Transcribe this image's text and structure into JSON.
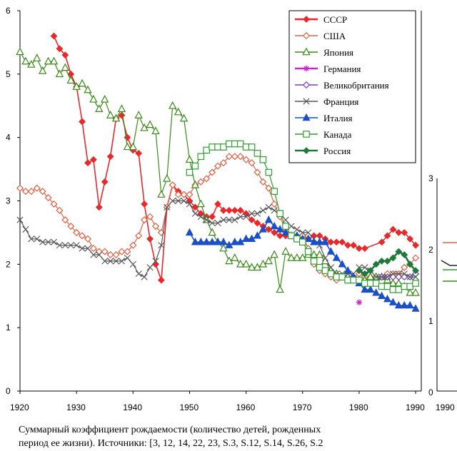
{
  "caption": {
    "line1": "Суммарный коэффициент рождаемости (количество детей, рожденных",
    "line2": "период ее жизни). Источники: [3, 12, 14, 22, 23, S.3, S.12, S.14, S.26, S.2"
  },
  "chart_data": {
    "type": "line",
    "title": "",
    "xlabel": "",
    "ylabel": "",
    "xlim": [
      1920,
      1991
    ],
    "ylim": [
      0,
      6
    ],
    "x_ticks": [
      1920,
      1930,
      1940,
      1950,
      1960,
      1970,
      1980,
      1990
    ],
    "y_ticks": [
      0,
      1,
      2,
      3,
      4,
      5,
      6
    ],
    "grid": false,
    "legend": "top-right",
    "series": [
      {
        "name": "СССР",
        "color": "#e8282a",
        "marker": "diamond-filled",
        "x": [
          1926,
          1927,
          1928,
          1929,
          1930,
          1931,
          1932,
          1933,
          1934,
          1935,
          1936,
          1937,
          1938,
          1939,
          1940,
          1941,
          1942,
          1943,
          1944,
          1945,
          1946,
          1947,
          1948,
          1949,
          1950,
          1951,
          1952,
          1953,
          1954,
          1955,
          1956,
          1957,
          1958,
          1959,
          1960,
          1961,
          1962,
          1963,
          1964,
          1965,
          1966,
          1967,
          1968,
          1969,
          1970,
          1971,
          1972,
          1973,
          1974,
          1975,
          1976,
          1977,
          1978,
          1979,
          1980,
          1981,
          1984,
          1985,
          1986,
          1987,
          1988,
          1989,
          1990
        ],
        "y": [
          5.6,
          5.4,
          5.3,
          5.0,
          4.8,
          4.25,
          3.6,
          3.65,
          2.9,
          3.3,
          3.7,
          4.3,
          4.35,
          4.0,
          3.8,
          3.75,
          2.95,
          2.4,
          2.0,
          1.75,
          2.9,
          3.25,
          3.15,
          3.1,
          3.0,
          2.9,
          2.8,
          2.75,
          2.75,
          2.95,
          2.85,
          2.85,
          2.85,
          2.85,
          2.8,
          2.7,
          2.65,
          2.6,
          2.55,
          2.5,
          2.45,
          2.45,
          2.45,
          2.4,
          2.45,
          2.4,
          2.45,
          2.45,
          2.4,
          2.35,
          2.35,
          2.35,
          2.3,
          2.3,
          2.25,
          2.25,
          2.35,
          2.45,
          2.55,
          2.5,
          2.5,
          2.4,
          2.3
        ]
      },
      {
        "name": "США",
        "color": "#e06040",
        "marker": "diamond-open",
        "x": [
          1920,
          1921,
          1922,
          1923,
          1924,
          1925,
          1926,
          1927,
          1928,
          1929,
          1930,
          1931,
          1932,
          1933,
          1934,
          1935,
          1936,
          1937,
          1938,
          1939,
          1940,
          1941,
          1942,
          1943,
          1944,
          1945,
          1946,
          1947,
          1948,
          1949,
          1950,
          1951,
          1952,
          1953,
          1954,
          1955,
          1956,
          1957,
          1958,
          1959,
          1960,
          1961,
          1962,
          1963,
          1964,
          1965,
          1966,
          1967,
          1968,
          1969,
          1970,
          1971,
          1972,
          1973,
          1974,
          1975,
          1976,
          1977,
          1978,
          1979,
          1980,
          1981,
          1982,
          1983,
          1984,
          1985,
          1986,
          1987,
          1988,
          1989,
          1990
        ],
        "y": [
          3.2,
          3.15,
          3.15,
          3.2,
          3.15,
          3.05,
          2.95,
          2.85,
          2.7,
          2.6,
          2.5,
          2.45,
          2.4,
          2.25,
          2.2,
          2.2,
          2.15,
          2.15,
          2.2,
          2.2,
          2.3,
          2.45,
          2.7,
          2.75,
          2.6,
          2.5,
          2.9,
          3.25,
          3.1,
          3.1,
          3.1,
          3.25,
          3.3,
          3.35,
          3.45,
          3.55,
          3.6,
          3.7,
          3.7,
          3.7,
          3.65,
          3.6,
          3.45,
          3.3,
          3.2,
          2.95,
          2.75,
          2.55,
          2.45,
          2.45,
          2.45,
          2.25,
          2.0,
          1.9,
          1.85,
          1.8,
          1.75,
          1.8,
          1.75,
          1.8,
          1.85,
          1.8,
          1.8,
          1.8,
          1.8,
          1.85,
          1.85,
          1.85,
          1.95,
          2.0,
          2.1
        ]
      },
      {
        "name": "Япония",
        "color": "#3a8a1a",
        "marker": "triangle-open",
        "x": [
          1920,
          1921,
          1922,
          1923,
          1924,
          1925,
          1926,
          1927,
          1928,
          1929,
          1930,
          1931,
          1932,
          1933,
          1934,
          1935,
          1936,
          1937,
          1938,
          1939,
          1940,
          1941,
          1942,
          1943,
          1944,
          1945,
          1946,
          1947,
          1948,
          1949,
          1950,
          1951,
          1952,
          1953,
          1954,
          1955,
          1956,
          1957,
          1958,
          1959,
          1960,
          1961,
          1962,
          1963,
          1964,
          1965,
          1966,
          1967,
          1968,
          1969,
          1970,
          1971,
          1972,
          1973,
          1974,
          1975,
          1976,
          1977,
          1978,
          1979,
          1980,
          1981,
          1982,
          1983,
          1984,
          1985,
          1986,
          1987,
          1988,
          1989,
          1990
        ],
        "y": [
          5.35,
          5.2,
          5.15,
          5.25,
          5.05,
          5.2,
          5.2,
          5.0,
          5.1,
          4.9,
          4.8,
          4.85,
          4.75,
          4.6,
          4.45,
          4.6,
          4.35,
          4.3,
          4.45,
          3.85,
          3.85,
          4.35,
          4.15,
          4.2,
          4.1,
          3.1,
          3.35,
          4.5,
          4.4,
          4.3,
          3.65,
          3.25,
          2.95,
          2.7,
          2.5,
          2.35,
          2.25,
          2.05,
          2.1,
          2.0,
          2.0,
          1.95,
          1.95,
          2.0,
          2.05,
          2.15,
          1.6,
          2.2,
          2.1,
          2.1,
          2.1,
          2.15,
          2.15,
          2.15,
          2.05,
          1.9,
          1.85,
          1.8,
          1.8,
          1.75,
          1.75,
          1.75,
          1.8,
          1.8,
          1.8,
          1.75,
          1.7,
          1.7,
          1.65,
          1.55,
          1.55
        ]
      },
      {
        "name": "Германия",
        "color": "#d020d0",
        "marker": "star",
        "x": [
          1980
        ],
        "y": [
          1.4
        ]
      },
      {
        "name": "Великобритания",
        "color": "#7a3cc4",
        "marker": "diamond-open",
        "x": [
          1984,
          1985,
          1986,
          1987,
          1988,
          1989,
          1990
        ],
        "y": [
          1.8,
          1.8,
          1.8,
          1.8,
          1.8,
          1.8,
          1.85
        ]
      },
      {
        "name": "Франция",
        "color": "#555555",
        "marker": "x",
        "x": [
          1920,
          1921,
          1922,
          1923,
          1924,
          1925,
          1926,
          1927,
          1928,
          1929,
          1930,
          1931,
          1932,
          1933,
          1934,
          1935,
          1936,
          1937,
          1938,
          1939,
          1940,
          1941,
          1942,
          1943,
          1944,
          1945,
          1946,
          1947,
          1948,
          1949,
          1950,
          1951,
          1952,
          1953,
          1954,
          1955,
          1956,
          1957,
          1958,
          1959,
          1960,
          1961,
          1962,
          1963,
          1964,
          1965,
          1966,
          1967,
          1968,
          1969,
          1970,
          1971,
          1972,
          1973,
          1974,
          1975,
          1976,
          1977,
          1978,
          1979,
          1980,
          1981,
          1982,
          1983,
          1984,
          1985,
          1986,
          1987,
          1988,
          1989,
          1990
        ],
        "y": [
          2.7,
          2.55,
          2.4,
          2.4,
          2.35,
          2.35,
          2.35,
          2.3,
          2.3,
          2.3,
          2.3,
          2.25,
          2.25,
          2.15,
          2.15,
          2.05,
          2.05,
          2.05,
          2.05,
          2.1,
          2.0,
          1.85,
          1.8,
          1.95,
          2.05,
          2.3,
          2.9,
          3.0,
          3.0,
          3.0,
          2.95,
          2.8,
          2.75,
          2.7,
          2.65,
          2.65,
          2.7,
          2.7,
          2.7,
          2.75,
          2.75,
          2.8,
          2.8,
          2.85,
          2.9,
          2.85,
          2.8,
          2.7,
          2.6,
          2.55,
          2.5,
          2.5,
          2.4,
          2.3,
          2.1,
          1.95,
          1.85,
          1.85,
          1.85,
          1.85,
          1.95,
          1.95,
          1.9,
          1.8,
          1.8,
          1.8,
          1.85,
          1.85,
          1.85,
          1.8,
          1.8
        ]
      },
      {
        "name": "Италия",
        "color": "#1a4fc8",
        "marker": "triangle-filled",
        "x": [
          1950,
          1951,
          1952,
          1953,
          1954,
          1955,
          1956,
          1957,
          1958,
          1959,
          1960,
          1961,
          1962,
          1963,
          1964,
          1965,
          1966,
          1967,
          1968,
          1969,
          1970,
          1971,
          1972,
          1973,
          1974,
          1975,
          1976,
          1977,
          1978,
          1979,
          1980,
          1981,
          1982,
          1983,
          1984,
          1985,
          1986,
          1987,
          1988,
          1989,
          1990
        ],
        "y": [
          2.5,
          2.35,
          2.35,
          2.35,
          2.35,
          2.35,
          2.35,
          2.3,
          2.35,
          2.35,
          2.4,
          2.4,
          2.45,
          2.55,
          2.7,
          2.6,
          2.55,
          2.5,
          2.45,
          2.45,
          2.4,
          2.4,
          2.35,
          2.35,
          2.35,
          2.2,
          2.1,
          2.0,
          1.9,
          1.8,
          1.7,
          1.6,
          1.6,
          1.55,
          1.5,
          1.45,
          1.4,
          1.35,
          1.35,
          1.35,
          1.3
        ]
      },
      {
        "name": "Канада",
        "color": "#2e9e2e",
        "marker": "square-open",
        "x": [
          1950,
          1951,
          1952,
          1953,
          1954,
          1955,
          1956,
          1957,
          1958,
          1959,
          1960,
          1961,
          1962,
          1963,
          1964,
          1965,
          1966,
          1967,
          1968,
          1969,
          1970,
          1971,
          1972,
          1973,
          1974,
          1975,
          1976,
          1977,
          1978,
          1979,
          1980,
          1981,
          1982,
          1983,
          1984,
          1985,
          1986,
          1987,
          1988,
          1989,
          1990
        ],
        "y": [
          3.45,
          3.55,
          3.7,
          3.8,
          3.85,
          3.85,
          3.85,
          3.9,
          3.9,
          3.9,
          3.85,
          3.85,
          3.75,
          3.65,
          3.45,
          3.15,
          2.8,
          2.6,
          2.45,
          2.4,
          2.35,
          2.2,
          2.05,
          1.95,
          1.9,
          1.85,
          1.8,
          1.8,
          1.75,
          1.75,
          1.75,
          1.7,
          1.7,
          1.7,
          1.65,
          1.65,
          1.6,
          1.6,
          1.65,
          1.65,
          1.7
        ]
      },
      {
        "name": "Россия",
        "color": "#1e7a3a",
        "marker": "diamond-filled",
        "x": [
          1980,
          1981,
          1982,
          1983,
          1984,
          1985,
          1986,
          1987,
          1988,
          1989,
          1990
        ],
        "y": [
          1.9,
          1.85,
          1.9,
          2.0,
          2.05,
          2.05,
          2.1,
          2.2,
          2.15,
          2.0,
          1.9
        ]
      }
    ]
  }
}
